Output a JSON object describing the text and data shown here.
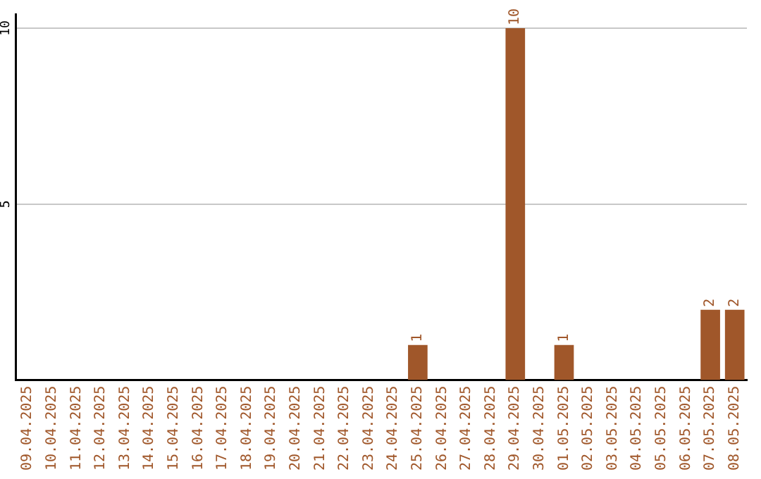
{
  "chart_data": {
    "type": "bar",
    "categories": [
      "09.04.2025",
      "10.04.2025",
      "11.04.2025",
      "12.04.2025",
      "13.04.2025",
      "14.04.2025",
      "15.04.2025",
      "16.04.2025",
      "17.04.2025",
      "18.04.2025",
      "19.04.2025",
      "20.04.2025",
      "21.04.2025",
      "22.04.2025",
      "23.04.2025",
      "24.04.2025",
      "25.04.2025",
      "26.04.2025",
      "27.04.2025",
      "28.04.2025",
      "29.04.2025",
      "30.04.2025",
      "01.05.2025",
      "02.05.2025",
      "03.05.2025",
      "04.05.2025",
      "05.05.2025",
      "06.05.2025",
      "07.05.2025",
      "08.05.2025"
    ],
    "values": [
      0,
      0,
      0,
      0,
      0,
      0,
      0,
      0,
      0,
      0,
      0,
      0,
      0,
      0,
      0,
      0,
      1,
      0,
      0,
      0,
      10,
      0,
      1,
      0,
      0,
      0,
      0,
      0,
      2,
      2
    ],
    "value_labels": [
      null,
      null,
      null,
      null,
      null,
      null,
      null,
      null,
      null,
      null,
      null,
      null,
      null,
      null,
      null,
      null,
      "1",
      null,
      null,
      null,
      "10",
      null,
      "1",
      null,
      null,
      null,
      null,
      null,
      "2",
      "2"
    ],
    "color": "#a0572a",
    "ylim": [
      0,
      10.4
    ],
    "yticks": [
      5,
      10
    ],
    "grid": "y",
    "legend": false
  }
}
